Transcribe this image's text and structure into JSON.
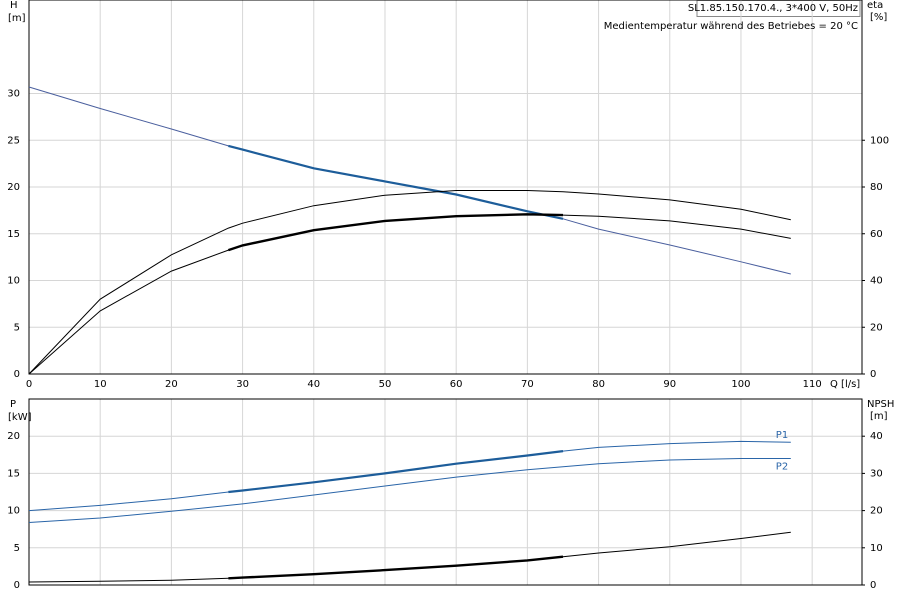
{
  "chart_data": [
    {
      "type": "line",
      "title": "SL1.85.150.170.4., 3*400 V, 50Hz",
      "subtitle": "Medientemperatur während des Betriebes = 20 °C",
      "y_label": "H",
      "y_unit": "[m]",
      "y2_label": "eta",
      "y2_unit": "[%]",
      "x_label": "Q [l/s]",
      "x": [
        0,
        10,
        20,
        28,
        30,
        40,
        50,
        60,
        70,
        75,
        80,
        90,
        100,
        107
      ],
      "xlim": [
        0,
        117
      ],
      "xticks": [
        0,
        10,
        20,
        30,
        40,
        50,
        60,
        70,
        80,
        90,
        100,
        110
      ],
      "xtick_labels": true,
      "ylim": [
        0,
        40
      ],
      "yticks": [
        0,
        5,
        10,
        15,
        20,
        25,
        30
      ],
      "y2lim": [
        0,
        160
      ],
      "y2ticks": [
        0,
        20,
        40,
        60,
        80,
        100
      ],
      "grid": true,
      "series": [
        {
          "color": "#4a5f9e",
          "width": 1,
          "values": [
            30.7,
            28.4,
            26.2,
            24.4,
            24.0,
            22.0,
            20.6,
            19.2,
            17.4,
            16.6,
            15.5,
            13.8,
            12.0,
            10.7
          ]
        },
        {
          "color": "#1d5d9a",
          "width": 2.2,
          "values": [
            null,
            null,
            null,
            24.4,
            24.0,
            22.0,
            20.6,
            19.2,
            17.4,
            16.6,
            null,
            null,
            null,
            null
          ]
        },
        {
          "color": "#000000",
          "width": 1,
          "axis": "y2",
          "values": [
            0,
            32,
            51,
            62.4,
            64.5,
            72,
            76.5,
            78.5,
            78.5,
            78,
            77,
            74.5,
            70.5,
            66
          ]
        },
        {
          "color": "#000000",
          "width": 1,
          "axis": "y2",
          "values": [
            0,
            27,
            44,
            53,
            55,
            61.5,
            65.5,
            67.5,
            68.3,
            68,
            67.5,
            65.5,
            62,
            58
          ]
        },
        {
          "color": "#000000",
          "width": 2.4,
          "axis": "y2",
          "values": [
            null,
            null,
            null,
            53,
            55,
            61.5,
            65.5,
            67.5,
            68.3,
            68,
            null,
            null,
            null,
            null
          ]
        }
      ]
    },
    {
      "type": "line",
      "y_label": "P",
      "y_unit": "[kW]",
      "y2_label": "NPSH",
      "y2_unit": "[m]",
      "x": [
        0,
        10,
        20,
        28,
        30,
        40,
        50,
        60,
        70,
        75,
        80,
        90,
        100,
        107
      ],
      "xlim": [
        0,
        117
      ],
      "xticks": [
        0,
        10,
        20,
        30,
        40,
        50,
        60,
        70,
        80,
        90,
        100,
        110
      ],
      "xtick_labels": false,
      "ylim": [
        0,
        25
      ],
      "yticks": [
        0,
        5,
        10,
        15,
        20
      ],
      "y2lim": [
        0,
        50
      ],
      "y2ticks": [
        0,
        10,
        20,
        30,
        40
      ],
      "grid": true,
      "series": [
        {
          "name": "P1",
          "color": "#2a65a8",
          "width": 1,
          "values": [
            10.0,
            10.7,
            11.6,
            12.5,
            12.7,
            13.8,
            15.0,
            16.3,
            17.4,
            18.0,
            18.5,
            19.0,
            19.3,
            19.2
          ]
        },
        {
          "color": "#1d5d9a",
          "width": 2.2,
          "values": [
            null,
            null,
            null,
            12.5,
            12.7,
            13.8,
            15.0,
            16.3,
            17.4,
            18.0,
            null,
            null,
            null,
            null
          ]
        },
        {
          "name": "P2",
          "color": "#2a65a8",
          "width": 1,
          "values": [
            8.4,
            9.0,
            9.9,
            10.7,
            10.9,
            12.1,
            13.3,
            14.5,
            15.5,
            15.9,
            16.3,
            16.8,
            17.0,
            17.0
          ]
        },
        {
          "color": "#000000",
          "width": 1,
          "axis": "y2",
          "values": [
            0.8,
            1.0,
            1.3,
            1.8,
            2.0,
            2.9,
            4.0,
            5.2,
            6.6,
            7.6,
            8.6,
            10.3,
            12.5,
            14.2
          ]
        },
        {
          "color": "#000000",
          "width": 2.4,
          "axis": "y2",
          "values": [
            null,
            null,
            null,
            1.8,
            2.0,
            2.9,
            4.0,
            5.2,
            6.6,
            7.6,
            null,
            null,
            null,
            null
          ]
        }
      ]
    }
  ]
}
